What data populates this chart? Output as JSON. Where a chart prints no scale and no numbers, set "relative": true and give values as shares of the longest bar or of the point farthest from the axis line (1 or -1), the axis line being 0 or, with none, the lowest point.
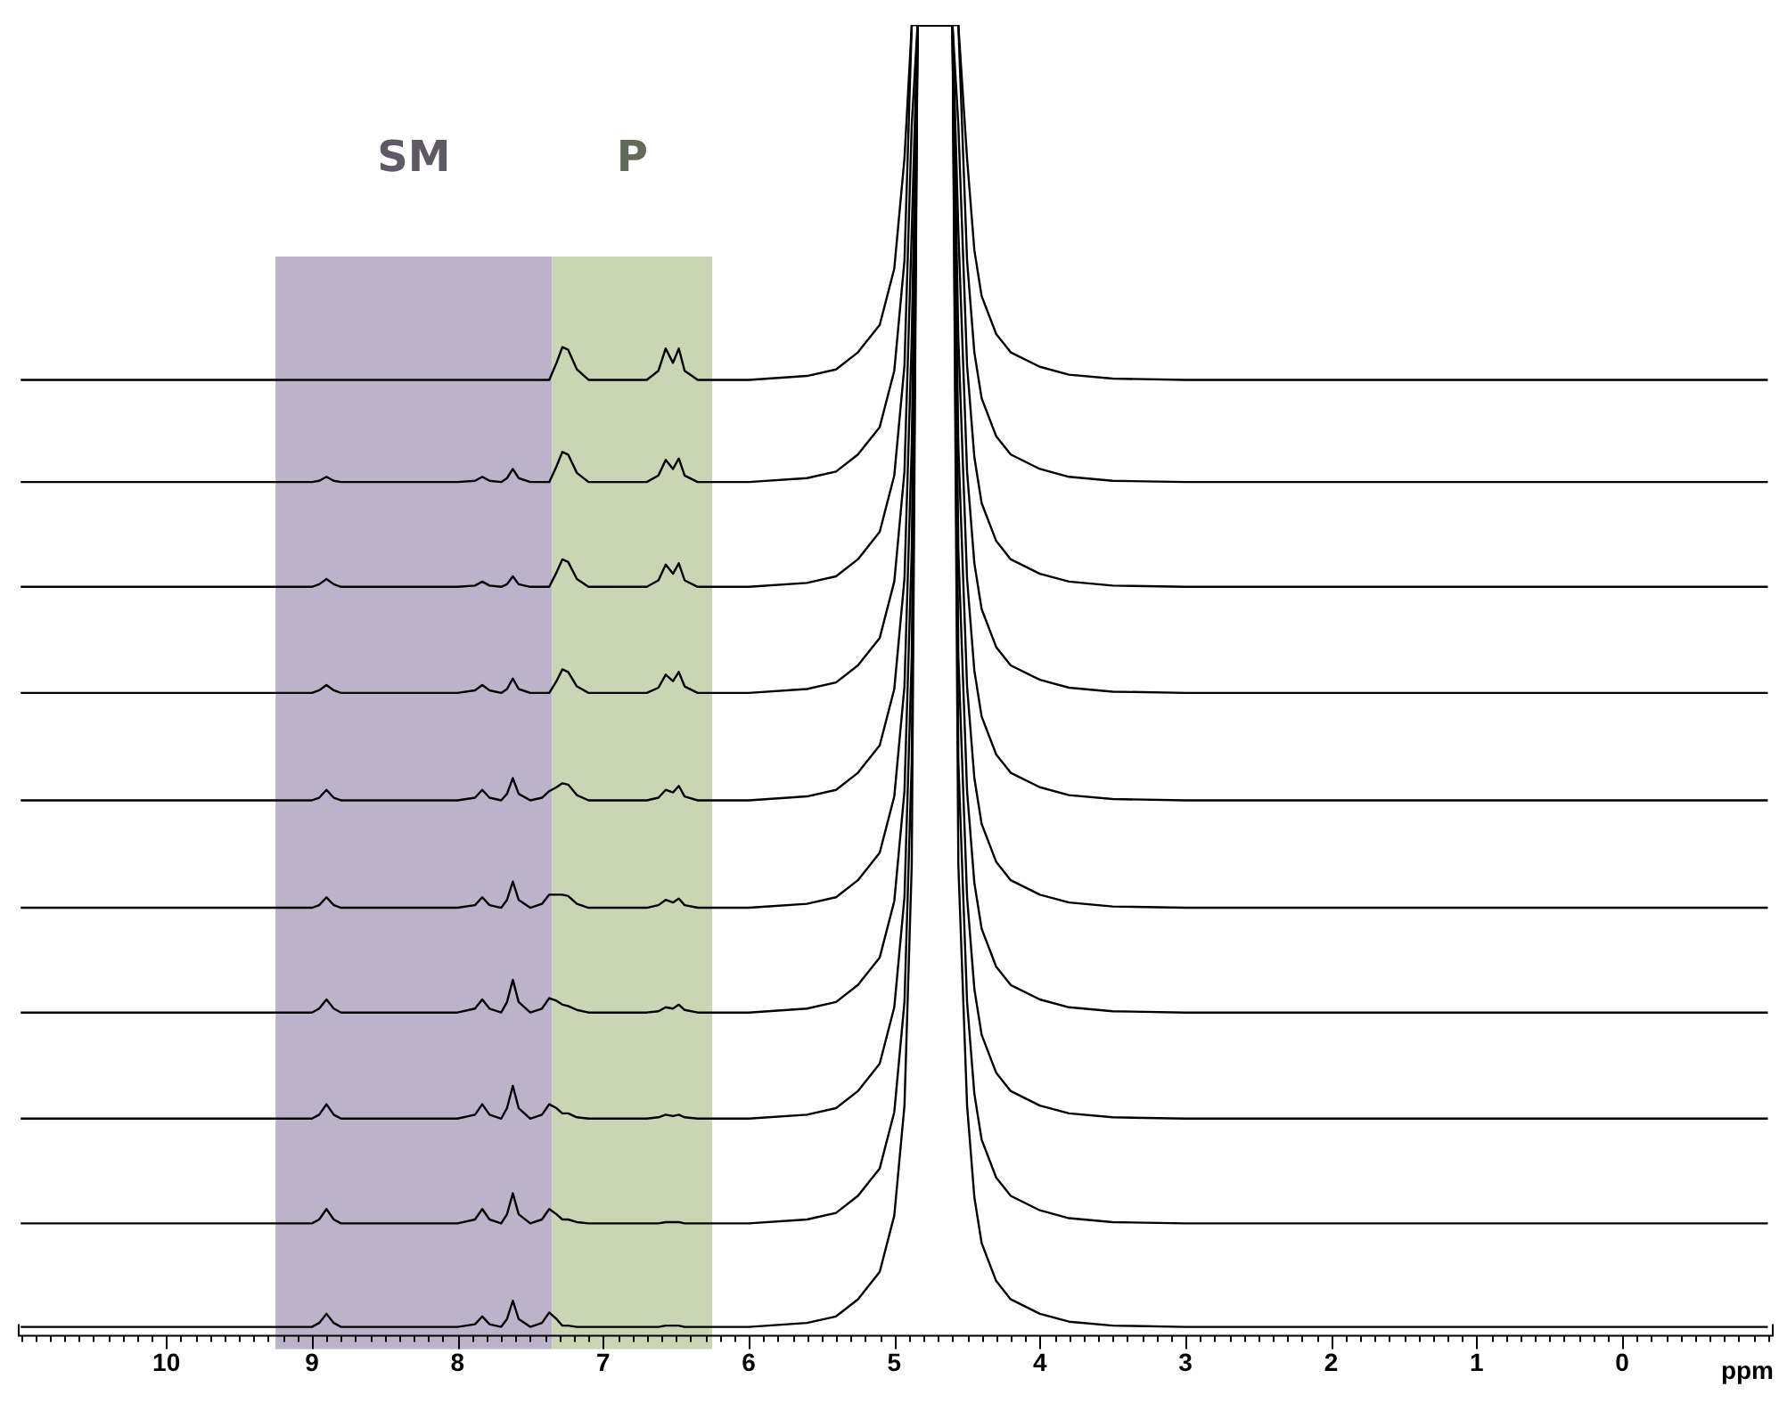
{
  "chart_data": {
    "type": "line",
    "relative": true,
    "xlabel": "ppm",
    "xlim": [
      11.02,
      -1.04
    ],
    "xticks": [
      {
        "value": 11,
        "label": null
      },
      10,
      9,
      8,
      7,
      6,
      5,
      4,
      3,
      2,
      1,
      0,
      {
        "value": -1,
        "label": null
      },
      {
        "value": 10.9,
        "label": null
      },
      {
        "value": 10.8,
        "label": null
      },
      {
        "value": 10.7,
        "label": null
      },
      {
        "value": 10.6,
        "label": null
      },
      {
        "value": 10.5,
        "label": null
      },
      {
        "value": 10.4,
        "label": null
      },
      {
        "value": 10.3,
        "label": null
      },
      {
        "value": 10.2,
        "label": null
      },
      {
        "value": 10.1,
        "label": null
      },
      {
        "value": 9.9,
        "label": null
      },
      {
        "value": 9.8,
        "label": null
      },
      {
        "value": 9.7,
        "label": null
      },
      {
        "value": 9.6,
        "label": null
      },
      {
        "value": 9.5,
        "label": null
      },
      {
        "value": 9.4,
        "label": null
      },
      {
        "value": 9.3,
        "label": null
      },
      {
        "value": 9.2,
        "label": null
      },
      {
        "value": 9.1,
        "label": null
      },
      {
        "value": 8.9,
        "label": null
      },
      {
        "value": 8.8,
        "label": null
      },
      {
        "value": 8.7,
        "label": null
      },
      {
        "value": 8.6,
        "label": null
      },
      {
        "value": 8.5,
        "label": null
      },
      {
        "value": 8.4,
        "label": null
      },
      {
        "value": 8.3,
        "label": null
      },
      {
        "value": 8.2,
        "label": null
      },
      {
        "value": 8.1,
        "label": null
      },
      {
        "value": 7.9,
        "label": null
      },
      {
        "value": 7.8,
        "label": null
      },
      {
        "value": 7.7,
        "label": null
      },
      {
        "value": 7.6,
        "label": null
      },
      {
        "value": 7.5,
        "label": null
      },
      {
        "value": 7.4,
        "label": null
      },
      {
        "value": 7.3,
        "label": null
      },
      {
        "value": 7.2,
        "label": null
      },
      {
        "value": 7.1,
        "label": null
      },
      {
        "value": 6.9,
        "label": null
      },
      {
        "value": 6.8,
        "label": null
      },
      {
        "value": 6.7,
        "label": null
      },
      {
        "value": 6.6,
        "label": null
      },
      {
        "value": 6.5,
        "label": null
      },
      {
        "value": 6.4,
        "label": null
      },
      {
        "value": 6.3,
        "label": null
      },
      {
        "value": 6.2,
        "label": null
      },
      {
        "value": 6.1,
        "label": null
      },
      {
        "value": 5.9,
        "label": null
      },
      {
        "value": 5.8,
        "label": null
      },
      {
        "value": 5.7,
        "label": null
      },
      {
        "value": 5.6,
        "label": null
      },
      {
        "value": 5.5,
        "label": null
      },
      {
        "value": 5.4,
        "label": null
      },
      {
        "value": 5.3,
        "label": null
      },
      {
        "value": 5.2,
        "label": null
      },
      {
        "value": 5.1,
        "label": null
      },
      {
        "value": 4.9,
        "label": null
      },
      {
        "value": 4.8,
        "label": null
      },
      {
        "value": 4.7,
        "label": null
      },
      {
        "value": 4.6,
        "label": null
      },
      {
        "value": 4.5,
        "label": null
      },
      {
        "value": 4.4,
        "label": null
      },
      {
        "value": 4.3,
        "label": null
      },
      {
        "value": 4.2,
        "label": null
      },
      {
        "value": 4.1,
        "label": null
      },
      {
        "value": 3.9,
        "label": null
      },
      {
        "value": 3.8,
        "label": null
      },
      {
        "value": 3.7,
        "label": null
      },
      {
        "value": 3.6,
        "label": null
      },
      {
        "value": 3.5,
        "label": null
      },
      {
        "value": 3.4,
        "label": null
      },
      {
        "value": 3.3,
        "label": null
      },
      {
        "value": 3.2,
        "label": null
      },
      {
        "value": 3.1,
        "label": null
      },
      {
        "value": 2.9,
        "label": null
      },
      {
        "value": 2.8,
        "label": null
      },
      {
        "value": 2.7,
        "label": null
      },
      {
        "value": 2.6,
        "label": null
      },
      {
        "value": 2.5,
        "label": null
      },
      {
        "value": 2.4,
        "label": null
      },
      {
        "value": 2.3,
        "label": null
      },
      {
        "value": 2.2,
        "label": null
      },
      {
        "value": 2.1,
        "label": null
      },
      {
        "value": 1.9,
        "label": null
      },
      {
        "value": 1.8,
        "label": null
      },
      {
        "value": 1.7,
        "label": null
      },
      {
        "value": 1.6,
        "label": null
      },
      {
        "value": 1.5,
        "label": null
      },
      {
        "value": 1.4,
        "label": null
      },
      {
        "value": 1.3,
        "label": null
      },
      {
        "value": 1.2,
        "label": null
      },
      {
        "value": 1.1,
        "label": null
      },
      {
        "value": 0.9,
        "label": null
      },
      {
        "value": 0.8,
        "label": null
      },
      {
        "value": 0.7,
        "label": null
      },
      {
        "value": 0.6,
        "label": null
      },
      {
        "value": 0.5,
        "label": null
      },
      {
        "value": 0.4,
        "label": null
      },
      {
        "value": 0.3,
        "label": null
      },
      {
        "value": 0.2,
        "label": null
      },
      {
        "value": 0.1,
        "label": null
      },
      {
        "value": -0.1,
        "label": null
      },
      {
        "value": -0.2,
        "label": null
      },
      {
        "value": -0.3,
        "label": null
      },
      {
        "value": -0.4,
        "label": null
      },
      {
        "value": -0.5,
        "label": null
      },
      {
        "value": -0.6,
        "label": null
      },
      {
        "value": -0.7,
        "label": null
      },
      {
        "value": -0.8,
        "label": null
      },
      {
        "value": -0.9,
        "label": null
      }
    ],
    "x": [
      11,
      10.5,
      10,
      9.5,
      9.0,
      8.95,
      8.9,
      8.85,
      8.8,
      8.4,
      8.0,
      7.88,
      7.83,
      7.78,
      7.7,
      7.66,
      7.62,
      7.58,
      7.5,
      7.42,
      7.37,
      7.32,
      7.28,
      7.24,
      7.18,
      7.1,
      6.9,
      6.7,
      6.62,
      6.57,
      6.52,
      6.48,
      6.44,
      6.35,
      6.0,
      5.6,
      5.4,
      5.25,
      5.1,
      5.0,
      4.93,
      4.88,
      4.84,
      4.6,
      4.56,
      4.5,
      4.45,
      4.4,
      4.3,
      4.2,
      4.0,
      3.8,
      3.5,
      3.0,
      2.0,
      1.0,
      0.3,
      0,
      -1
    ],
    "bands": [
      {
        "axis": "x",
        "from": 9.25,
        "to": 7.35,
        "label": "SM",
        "color": "#bcb3ca"
      },
      {
        "axis": "x",
        "from": 7.35,
        "to": 6.25,
        "label": "P",
        "color": "#c9d5b3"
      }
    ],
    "series": [
      {
        "color": "#000000",
        "values": [
          0.729,
          0.729,
          0.729,
          0.729,
          0.729,
          0.729,
          0.729,
          0.729,
          0.729,
          0.729,
          0.729,
          0.729,
          0.729,
          0.729,
          0.729,
          0.729,
          0.729,
          0.729,
          0.729,
          0.729,
          0.729,
          0.742,
          0.754,
          0.752,
          0.737,
          0.729,
          0.729,
          0.729,
          0.736,
          0.753,
          0.742,
          0.753,
          0.736,
          0.729,
          0.729,
          0.732,
          0.737,
          0.75,
          0.771,
          0.814,
          0.898,
          1,
          1,
          1,
          1,
          0.898,
          0.828,
          0.793,
          0.764,
          0.75,
          0.739,
          0.733,
          0.73,
          0.729,
          0.729,
          0.729,
          0.729,
          0.729,
          0.729
        ]
      },
      {
        "color": "#000000",
        "values": [
          0.651,
          0.651,
          0.651,
          0.651,
          0.651,
          0.652,
          0.655,
          0.652,
          0.651,
          0.651,
          0.651,
          0.652,
          0.655,
          0.652,
          0.651,
          0.654,
          0.661,
          0.654,
          0.651,
          0.651,
          0.651,
          0.663,
          0.674,
          0.672,
          0.658,
          0.651,
          0.651,
          0.651,
          0.656,
          0.668,
          0.661,
          0.669,
          0.656,
          0.651,
          0.651,
          0.654,
          0.659,
          0.672,
          0.693,
          0.736,
          0.82,
          1,
          1,
          1,
          1,
          0.82,
          0.75,
          0.715,
          0.686,
          0.672,
          0.661,
          0.655,
          0.652,
          0.651,
          0.651,
          0.651,
          0.651,
          0.651,
          0.651
        ]
      },
      {
        "color": "#000000",
        "values": [
          0.571,
          0.571,
          0.571,
          0.571,
          0.571,
          0.573,
          0.577,
          0.573,
          0.571,
          0.571,
          0.571,
          0.572,
          0.575,
          0.572,
          0.571,
          0.573,
          0.579,
          0.573,
          0.571,
          0.571,
          0.571,
          0.582,
          0.592,
          0.59,
          0.577,
          0.571,
          0.571,
          0.571,
          0.576,
          0.588,
          0.581,
          0.589,
          0.576,
          0.571,
          0.571,
          0.574,
          0.579,
          0.592,
          0.613,
          0.656,
          0.74,
          0.924,
          1,
          1,
          0.924,
          0.74,
          0.67,
          0.635,
          0.606,
          0.592,
          0.581,
          0.575,
          0.572,
          0.571,
          0.571,
          0.571,
          0.571,
          0.571,
          0.571
        ]
      },
      {
        "color": "#000000",
        "values": [
          0.49,
          0.49,
          0.49,
          0.49,
          0.49,
          0.492,
          0.496,
          0.492,
          0.49,
          0.49,
          0.49,
          0.492,
          0.496,
          0.492,
          0.49,
          0.493,
          0.501,
          0.493,
          0.49,
          0.49,
          0.49,
          0.499,
          0.508,
          0.506,
          0.495,
          0.49,
          0.49,
          0.49,
          0.494,
          0.504,
          0.499,
          0.506,
          0.495,
          0.49,
          0.49,
          0.493,
          0.498,
          0.511,
          0.532,
          0.575,
          0.659,
          0.843,
          1,
          1,
          0.843,
          0.659,
          0.589,
          0.554,
          0.525,
          0.511,
          0.5,
          0.494,
          0.491,
          0.49,
          0.49,
          0.49,
          0.49,
          0.49,
          0.49
        ]
      },
      {
        "color": "#000000",
        "values": [
          0.408,
          0.408,
          0.408,
          0.408,
          0.408,
          0.41,
          0.416,
          0.41,
          0.408,
          0.408,
          0.408,
          0.41,
          0.416,
          0.41,
          0.408,
          0.413,
          0.425,
          0.413,
          0.408,
          0.41,
          0.415,
          0.418,
          0.421,
          0.42,
          0.412,
          0.408,
          0.408,
          0.408,
          0.41,
          0.416,
          0.414,
          0.419,
          0.411,
          0.408,
          0.408,
          0.411,
          0.416,
          0.429,
          0.45,
          0.493,
          0.577,
          0.761,
          1,
          1,
          0.761,
          0.577,
          0.507,
          0.472,
          0.443,
          0.429,
          0.418,
          0.412,
          0.409,
          0.408,
          0.408,
          0.408,
          0.408,
          0.408,
          0.408
        ]
      },
      {
        "color": "#000000",
        "values": [
          0.326,
          0.326,
          0.326,
          0.326,
          0.326,
          0.328,
          0.334,
          0.328,
          0.326,
          0.326,
          0.326,
          0.328,
          0.334,
          0.328,
          0.326,
          0.332,
          0.346,
          0.332,
          0.326,
          0.329,
          0.336,
          0.336,
          0.336,
          0.335,
          0.329,
          0.326,
          0.326,
          0.326,
          0.328,
          0.332,
          0.33,
          0.333,
          0.328,
          0.326,
          0.326,
          0.329,
          0.334,
          0.347,
          0.368,
          0.411,
          0.495,
          0.679,
          1,
          1,
          0.679,
          0.495,
          0.425,
          0.39,
          0.361,
          0.347,
          0.336,
          0.33,
          0.327,
          0.326,
          0.326,
          0.326,
          0.326,
          0.326,
          0.326
        ]
      },
      {
        "color": "#000000",
        "values": [
          0.246,
          0.246,
          0.246,
          0.246,
          0.246,
          0.249,
          0.256,
          0.249,
          0.246,
          0.246,
          0.246,
          0.249,
          0.256,
          0.249,
          0.246,
          0.254,
          0.271,
          0.254,
          0.246,
          0.249,
          0.257,
          0.255,
          0.252,
          0.251,
          0.248,
          0.246,
          0.246,
          0.246,
          0.247,
          0.25,
          0.249,
          0.252,
          0.248,
          0.246,
          0.246,
          0.249,
          0.254,
          0.267,
          0.288,
          0.331,
          0.415,
          0.599,
          1,
          1,
          0.599,
          0.415,
          0.345,
          0.31,
          0.281,
          0.267,
          0.256,
          0.25,
          0.247,
          0.246,
          0.246,
          0.246,
          0.246,
          0.246,
          0.246
        ]
      },
      {
        "color": "#000000",
        "values": [
          0.165,
          0.165,
          0.165,
          0.165,
          0.165,
          0.168,
          0.176,
          0.168,
          0.165,
          0.165,
          0.165,
          0.168,
          0.176,
          0.168,
          0.165,
          0.173,
          0.19,
          0.173,
          0.165,
          0.168,
          0.176,
          0.173,
          0.169,
          0.169,
          0.166,
          0.165,
          0.165,
          0.165,
          0.166,
          0.168,
          0.167,
          0.168,
          0.166,
          0.165,
          0.165,
          0.168,
          0.173,
          0.186,
          0.207,
          0.25,
          0.334,
          0.518,
          1,
          1,
          0.518,
          0.334,
          0.264,
          0.229,
          0.2,
          0.186,
          0.175,
          0.169,
          0.166,
          0.165,
          0.165,
          0.165,
          0.165,
          0.165,
          0.165
        ]
      },
      {
        "color": "#000000",
        "values": [
          0.085,
          0.085,
          0.085,
          0.085,
          0.085,
          0.088,
          0.096,
          0.088,
          0.085,
          0.085,
          0.085,
          0.088,
          0.096,
          0.088,
          0.085,
          0.092,
          0.108,
          0.092,
          0.085,
          0.088,
          0.096,
          0.092,
          0.088,
          0.088,
          0.086,
          0.085,
          0.085,
          0.085,
          0.085,
          0.086,
          0.086,
          0.086,
          0.085,
          0.085,
          0.085,
          0.088,
          0.093,
          0.106,
          0.127,
          0.17,
          0.254,
          0.438,
          1,
          1,
          0.438,
          0.254,
          0.184,
          0.149,
          0.12,
          0.106,
          0.095,
          0.089,
          0.086,
          0.085,
          0.085,
          0.085,
          0.085,
          0.085,
          0.085
        ]
      },
      {
        "color": "#000000",
        "values": [
          0.006,
          0.006,
          0.006,
          0.006,
          0.006,
          0.009,
          0.016,
          0.009,
          0.006,
          0.006,
          0.006,
          0.008,
          0.014,
          0.008,
          0.006,
          0.012,
          0.026,
          0.012,
          0.006,
          0.009,
          0.017,
          0.012,
          0.007,
          0.007,
          0.006,
          0.006,
          0.006,
          0.006,
          0.006,
          0.007,
          0.007,
          0.007,
          0.006,
          0.006,
          0.006,
          0.009,
          0.014,
          0.027,
          0.048,
          0.091,
          0.175,
          0.359,
          1,
          1,
          0.359,
          0.175,
          0.105,
          0.07,
          0.041,
          0.027,
          0.016,
          0.01,
          0.007,
          0.006,
          0.006,
          0.006,
          0.006,
          0.006,
          0.006
        ]
      }
    ]
  }
}
